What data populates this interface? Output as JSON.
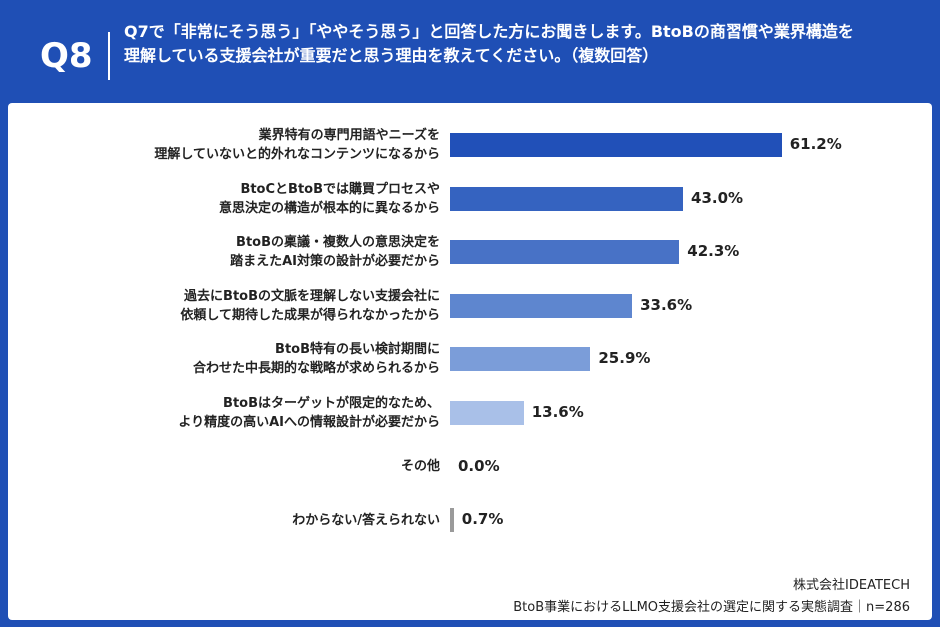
{
  "header": {
    "badge": "Q8",
    "question": "Q7で「非常にそう思う」「ややそう思う」と回答した方にお聞きします。BtoBの商習慣や業界構造を理解している支援会社が重要だと思う理由を教えてください。（複数回答）"
  },
  "chart_data": {
    "type": "bar",
    "orientation": "horizontal",
    "categories": [
      "業界特有の専門用語やニーズを\n理解していないと的外れなコンテンツになるから",
      "BtoCとBtoBでは購買プロセスや\n意思決定の構造が根本的に異なるから",
      "BtoBの稟議・複数人の意思決定を\n踏まえたAI対策の設計が必要だから",
      "過去にBtoBの文脈を理解しない支援会社に\n依頼して期待した成果が得られなかったから",
      "BtoB特有の長い検討期間に\n合わせた中長期的な戦略が求められるから",
      "BtoBはターゲットが限定的なため、\nより精度の高いAIへの情報設計が必要だから",
      "その他",
      "わからない/答えられない"
    ],
    "values": [
      61.2,
      43.0,
      42.3,
      33.6,
      25.9,
      13.6,
      0.0,
      0.7
    ],
    "value_labels": [
      "61.2%",
      "43.0%",
      "42.3%",
      "33.6%",
      "25.9%",
      "13.6%",
      "0.0%",
      "0.7%"
    ],
    "colors": [
      "#2150b8",
      "#3563c0",
      "#4872c6",
      "#5e86cf",
      "#7b9dd9",
      "#a9c0e8",
      "#c4d3ee",
      "#9a9a9a"
    ]
  },
  "footer": {
    "company": "株式会社IDEATECH",
    "source": "BtoB事業におけるLLMO支援会社の選定に関する実態調査｜n=286"
  }
}
